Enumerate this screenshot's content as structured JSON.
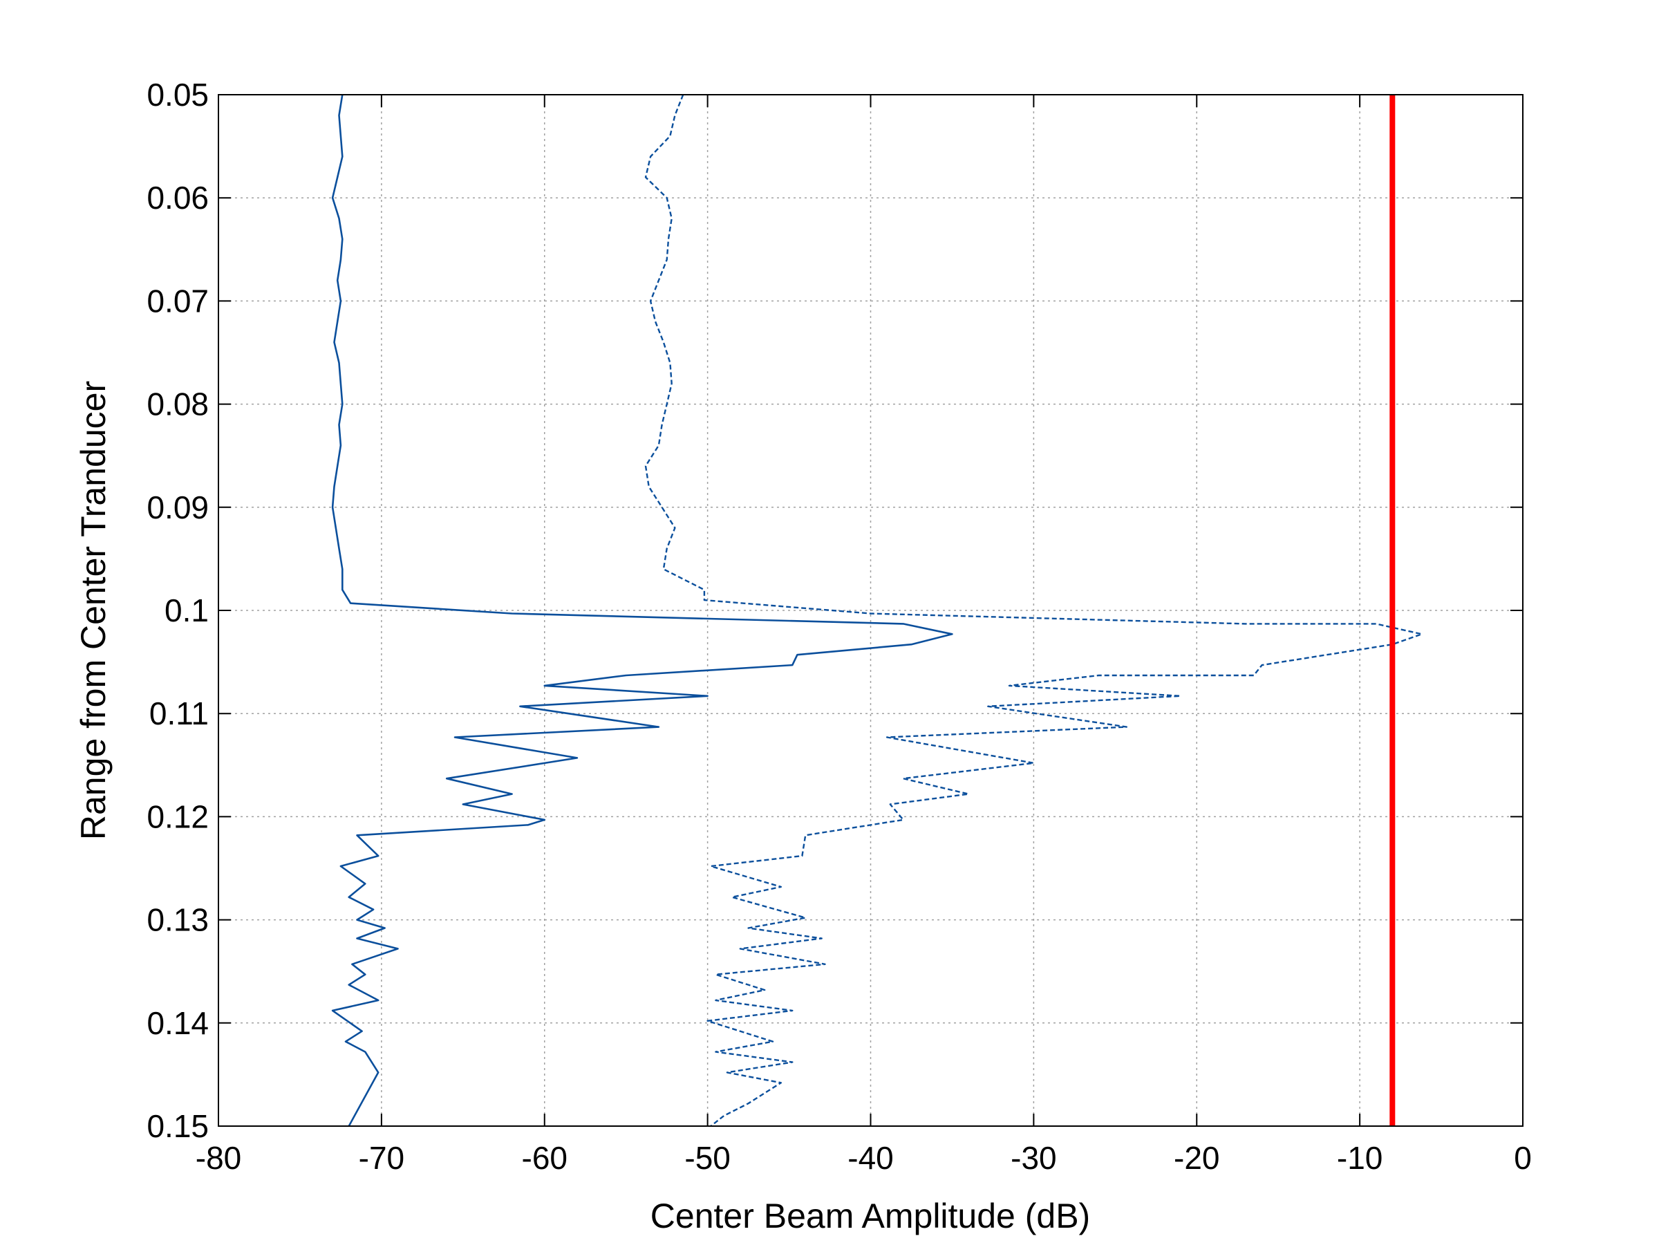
{
  "chart_data": {
    "type": "line",
    "title": "",
    "xlabel": "Center Beam Amplitude (dB)",
    "ylabel": "Range from Center Tranducer",
    "xlim": [
      -80,
      0
    ],
    "ylim": [
      0.05,
      0.15
    ],
    "y_reversed": true,
    "grid": true,
    "xticks": [
      -80,
      -70,
      -60,
      -50,
      -40,
      -30,
      -20,
      -10,
      0
    ],
    "yticks": [
      0.05,
      0.06,
      0.07,
      0.08,
      0.09,
      0.1,
      0.11,
      0.12,
      0.13,
      0.14,
      0.15
    ],
    "xtick_labels": [
      "-80",
      "-70",
      "-60",
      "-50",
      "-40",
      "-30",
      "-20",
      "-10",
      "0"
    ],
    "ytick_labels": [
      "0.05",
      "0.06",
      "0.07",
      "0.08",
      "0.09",
      "0.1",
      "0.11",
      "0.12",
      "0.13",
      "0.14",
      "0.15"
    ],
    "colors": {
      "series": "#0b4f9c",
      "threshold": "#ff0000"
    },
    "series": [
      {
        "style": "solid",
        "points": [
          [
            -72.4,
            0.05
          ],
          [
            -72.6,
            0.052
          ],
          [
            -72.5,
            0.054
          ],
          [
            -72.4,
            0.056
          ],
          [
            -72.7,
            0.058
          ],
          [
            -73.0,
            0.06
          ],
          [
            -72.6,
            0.062
          ],
          [
            -72.4,
            0.064
          ],
          [
            -72.5,
            0.066
          ],
          [
            -72.7,
            0.068
          ],
          [
            -72.5,
            0.07
          ],
          [
            -72.7,
            0.072
          ],
          [
            -72.9,
            0.074
          ],
          [
            -72.6,
            0.076
          ],
          [
            -72.5,
            0.078
          ],
          [
            -72.4,
            0.08
          ],
          [
            -72.6,
            0.082
          ],
          [
            -72.5,
            0.084
          ],
          [
            -72.7,
            0.086
          ],
          [
            -72.9,
            0.088
          ],
          [
            -73.0,
            0.09
          ],
          [
            -72.8,
            0.092
          ],
          [
            -72.6,
            0.094
          ],
          [
            -72.4,
            0.096
          ],
          [
            -72.4,
            0.098
          ],
          [
            -71.9,
            0.0993
          ],
          [
            -62.0,
            0.1003
          ],
          [
            -38.0,
            0.1013
          ],
          [
            -35.0,
            0.1023
          ],
          [
            -37.5,
            0.1033
          ],
          [
            -44.5,
            0.1043
          ],
          [
            -44.8,
            0.1053
          ],
          [
            -55.0,
            0.1063
          ],
          [
            -60.0,
            0.1073
          ],
          [
            -50.0,
            0.1083
          ],
          [
            -61.5,
            0.1093
          ],
          [
            -53.0,
            0.1113
          ],
          [
            -65.5,
            0.1123
          ],
          [
            -58.0,
            0.1143
          ],
          [
            -66.0,
            0.1163
          ],
          [
            -62.0,
            0.1178
          ],
          [
            -65.0,
            0.1188
          ],
          [
            -60.0,
            0.1203
          ],
          [
            -61.0,
            0.1208
          ],
          [
            -71.5,
            0.1218
          ],
          [
            -70.2,
            0.1238
          ],
          [
            -72.5,
            0.1248
          ],
          [
            -71.0,
            0.1265
          ],
          [
            -72.0,
            0.1278
          ],
          [
            -70.5,
            0.129
          ],
          [
            -71.5,
            0.13
          ],
          [
            -69.8,
            0.1308
          ],
          [
            -71.5,
            0.1318
          ],
          [
            -69.0,
            0.1328
          ],
          [
            -71.8,
            0.1343
          ],
          [
            -71.0,
            0.1353
          ],
          [
            -72.0,
            0.1363
          ],
          [
            -70.2,
            0.1378
          ],
          [
            -73.0,
            0.1388
          ],
          [
            -71.2,
            0.1408
          ],
          [
            -72.2,
            0.1418
          ],
          [
            -71.0,
            0.1428
          ],
          [
            -70.2,
            0.1448
          ],
          [
            -72.0,
            0.15
          ]
        ]
      },
      {
        "style": "dashed",
        "points": [
          [
            -51.5,
            0.05
          ],
          [
            -52.0,
            0.052
          ],
          [
            -52.3,
            0.054
          ],
          [
            -53.5,
            0.056
          ],
          [
            -53.8,
            0.058
          ],
          [
            -52.5,
            0.06
          ],
          [
            -52.2,
            0.062
          ],
          [
            -52.4,
            0.064
          ],
          [
            -52.5,
            0.066
          ],
          [
            -53.0,
            0.068
          ],
          [
            -53.5,
            0.07
          ],
          [
            -53.2,
            0.072
          ],
          [
            -52.7,
            0.074
          ],
          [
            -52.3,
            0.076
          ],
          [
            -52.2,
            0.078
          ],
          [
            -52.5,
            0.08
          ],
          [
            -52.8,
            0.082
          ],
          [
            -53.0,
            0.084
          ],
          [
            -53.8,
            0.086
          ],
          [
            -53.6,
            0.088
          ],
          [
            -52.8,
            0.09
          ],
          [
            -52.0,
            0.092
          ],
          [
            -52.5,
            0.094
          ],
          [
            -52.7,
            0.096
          ],
          [
            -50.2,
            0.098
          ],
          [
            -50.2,
            0.099
          ],
          [
            -40.0,
            0.1003
          ],
          [
            -17.0,
            0.1013
          ],
          [
            -9.0,
            0.1013
          ],
          [
            -6.2,
            0.1023
          ],
          [
            -8.0,
            0.1033
          ],
          [
            -16.0,
            0.1053
          ],
          [
            -16.5,
            0.1063
          ],
          [
            -26.0,
            0.1063
          ],
          [
            -31.5,
            0.1073
          ],
          [
            -21.0,
            0.1083
          ],
          [
            -32.8,
            0.1093
          ],
          [
            -24.3,
            0.1113
          ],
          [
            -39.0,
            0.1123
          ],
          [
            -30.0,
            0.1148
          ],
          [
            -38.0,
            0.1163
          ],
          [
            -34.0,
            0.1178
          ],
          [
            -38.8,
            0.1188
          ],
          [
            -38.0,
            0.1203
          ],
          [
            -44.0,
            0.1218
          ],
          [
            -44.2,
            0.1238
          ],
          [
            -49.8,
            0.1248
          ],
          [
            -45.5,
            0.1268
          ],
          [
            -48.5,
            0.1278
          ],
          [
            -44.0,
            0.1298
          ],
          [
            -47.5,
            0.1308
          ],
          [
            -43.0,
            0.1318
          ],
          [
            -48.0,
            0.1328
          ],
          [
            -42.8,
            0.1343
          ],
          [
            -49.5,
            0.1353
          ],
          [
            -46.5,
            0.1368
          ],
          [
            -49.5,
            0.1378
          ],
          [
            -44.8,
            0.1388
          ],
          [
            -50.0,
            0.1398
          ],
          [
            -46.0,
            0.1418
          ],
          [
            -49.5,
            0.1428
          ],
          [
            -44.8,
            0.1438
          ],
          [
            -48.8,
            0.1448
          ],
          [
            -45.5,
            0.1458
          ],
          [
            -47.5,
            0.1478
          ],
          [
            -49.0,
            0.149
          ],
          [
            -49.8,
            0.15
          ]
        ]
      },
      {
        "style": "threshold",
        "points": [
          [
            -8.0,
            0.05
          ],
          [
            -8.0,
            0.15
          ]
        ]
      }
    ]
  }
}
